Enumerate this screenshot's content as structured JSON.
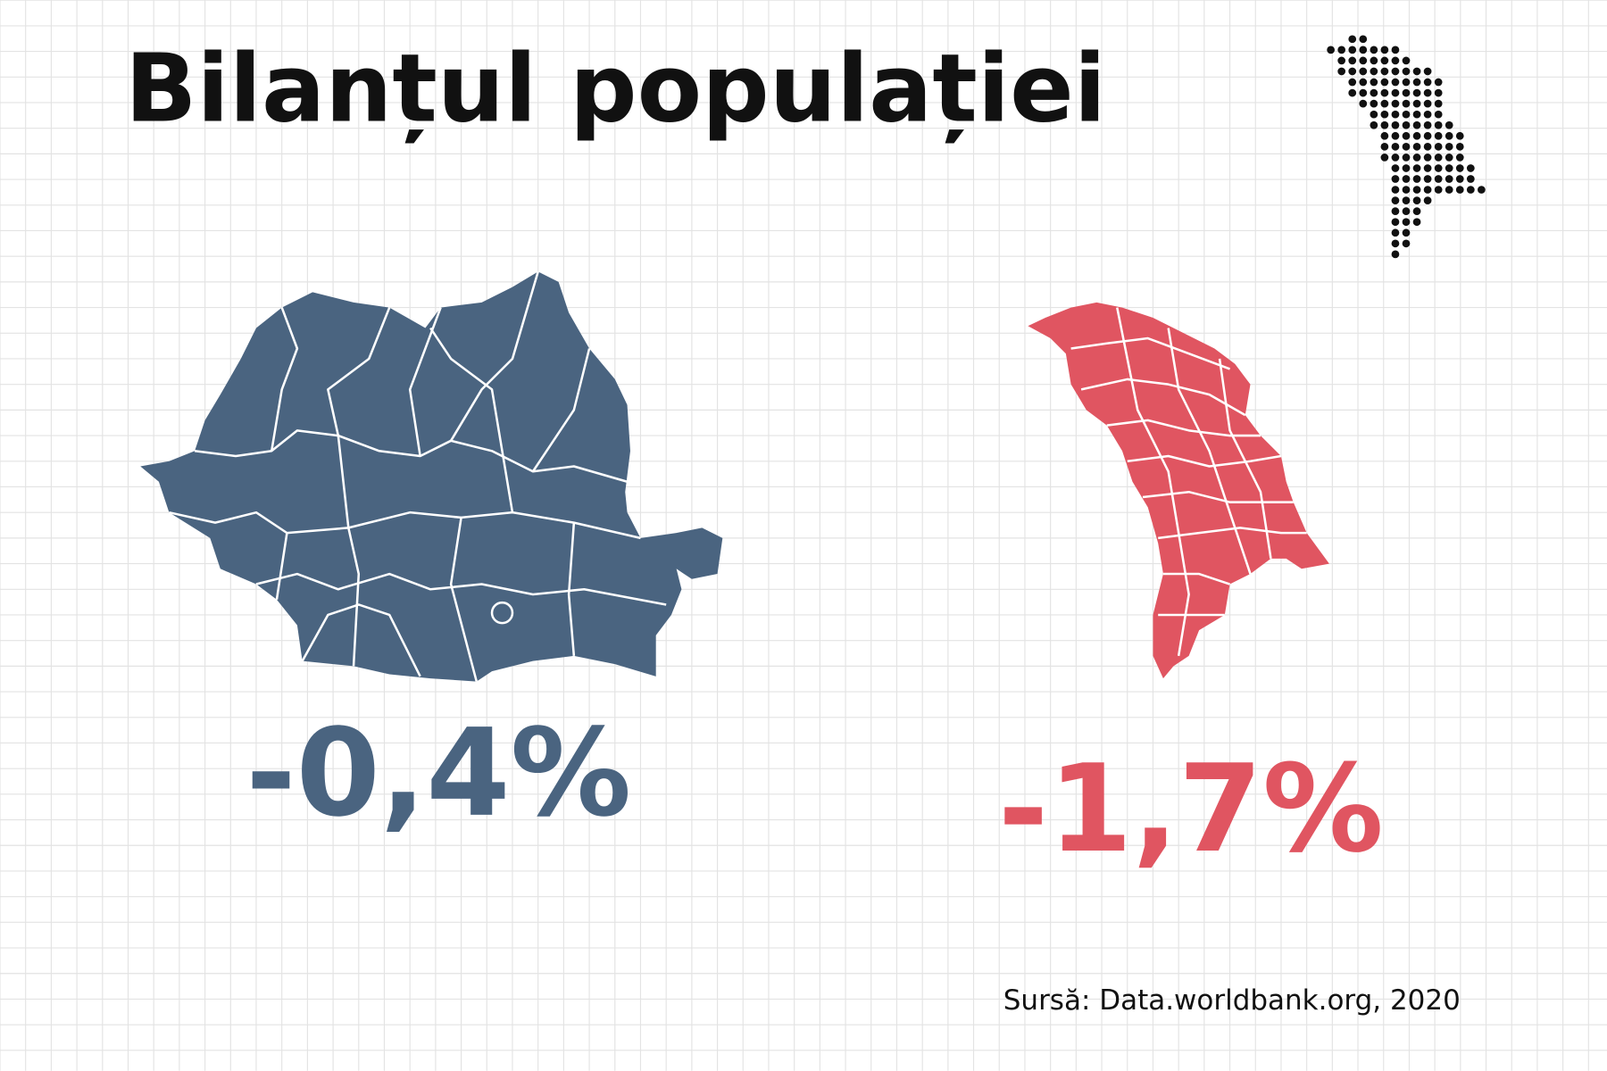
{
  "header": {
    "title": "Bilanțul populației"
  },
  "items": [
    {
      "value": "-0,4%",
      "color": "#4a6480"
    },
    {
      "value": "-1,7%",
      "color": "#e05561"
    }
  ],
  "source": "Sursă: Data.worldbank.org, 2020"
}
